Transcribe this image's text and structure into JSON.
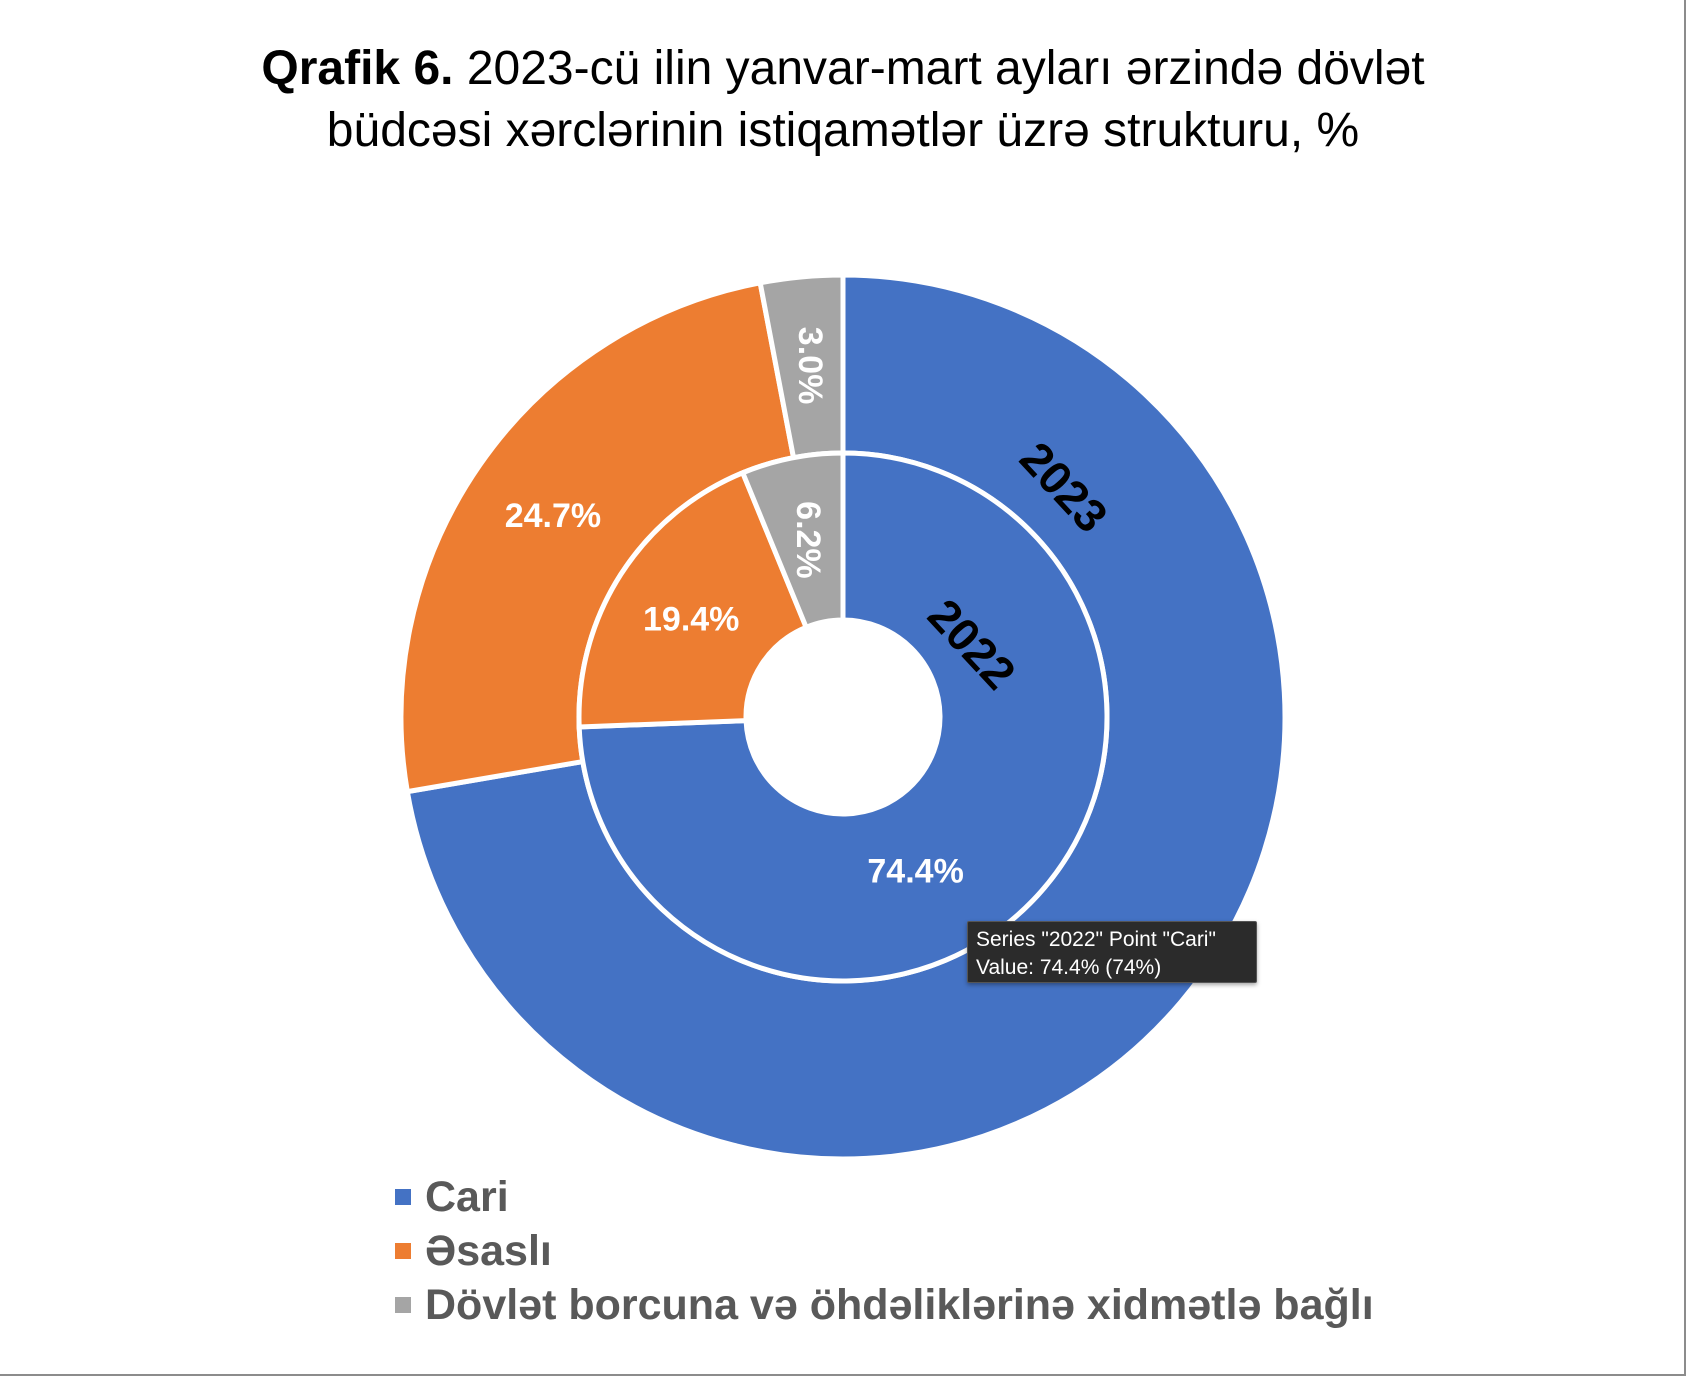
{
  "title": {
    "lead": "Qrafik 6.",
    "line1_rest": " 2023-cü ilin yanvar-mart ayları ərzində dövlət",
    "line2": "büdcəsi xərclərinin istiqamətlər üzrə strukturu, %"
  },
  "chart_data": {
    "type": "donut",
    "categories": [
      "Cari",
      "Əsaslı",
      "Dövlət borcuna və öhdəliklərinə xidmətlə bağlı"
    ],
    "colors": [
      "#4472C4",
      "#ED7D31",
      "#A5A5A5"
    ],
    "series": [
      {
        "name": "2023",
        "ring": "outer",
        "values": [
          72.3,
          24.7,
          3.0
        ],
        "labels": [
          "",
          "24.7%",
          "3.0%"
        ]
      },
      {
        "name": "2022",
        "ring": "inner",
        "values": [
          74.4,
          19.4,
          6.2
        ],
        "labels": [
          "74.4%",
          "19.4%",
          "6.2%"
        ]
      }
    ],
    "legend_position": "bottom-left"
  },
  "tooltip": {
    "line1": "Series \"2022\" Point \"Cari\"",
    "line2": "Value: 74.4% (74%)"
  },
  "legend": {
    "items": [
      {
        "label": "Cari",
        "color": "#4472C4"
      },
      {
        "label": "Əsaslı",
        "color": "#ED7D31"
      },
      {
        "label": "Dövlət borcuna və öhdəliklərinə xidmətlə bağlı",
        "color": "#A5A5A5"
      }
    ]
  }
}
